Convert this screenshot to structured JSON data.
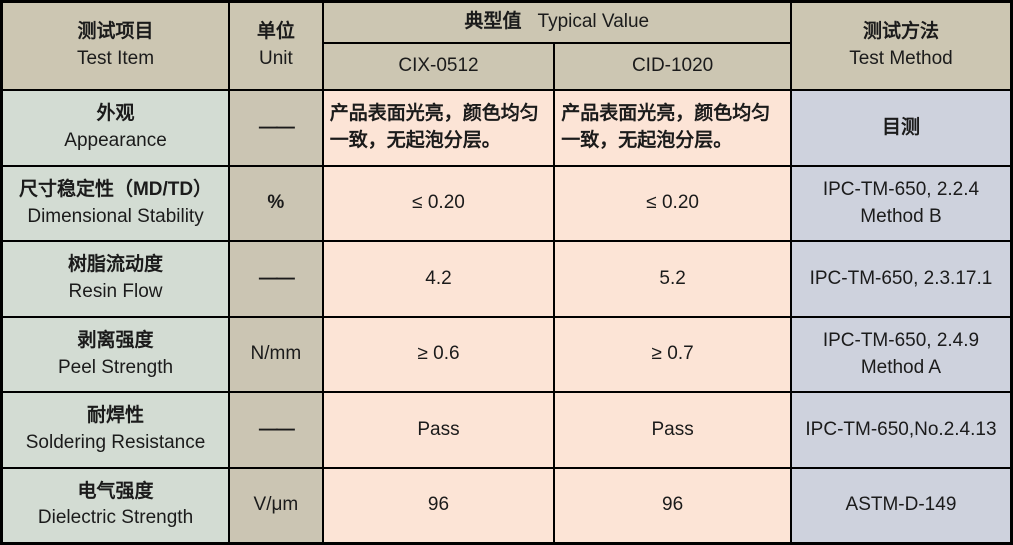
{
  "table": {
    "header": {
      "test_item": {
        "cn": "测试项目",
        "en": "Test Item"
      },
      "unit": {
        "cn": "单位",
        "en": "Unit"
      },
      "typical_value": {
        "cn": "典型值",
        "en": "Typical Value"
      },
      "columns": [
        "CIX-0512",
        "CID-1020"
      ],
      "test_method": {
        "cn": "测试方法",
        "en": "Test Method"
      }
    },
    "rows": [
      {
        "item_cn": "外观",
        "item_en": "Appearance",
        "unit": "——",
        "cix": "产品表面光亮，颜色均匀一致，无起泡分层。",
        "cid": "产品表面光亮，颜色均匀一致，无起泡分层。",
        "method": "目测"
      },
      {
        "item_cn": "尺寸稳定性（MD/TD）",
        "item_en": "Dimensional Stability",
        "unit": "%",
        "cix": "≤ 0.20",
        "cid": "≤ 0.20",
        "method": "IPC-TM-650, 2.2.4 Method B"
      },
      {
        "item_cn": "树脂流动度",
        "item_en": "Resin Flow",
        "unit": "——",
        "cix": "4.2",
        "cid": "5.2",
        "method": "IPC-TM-650, 2.3.17.1"
      },
      {
        "item_cn": "剥离强度",
        "item_en": "Peel Strength",
        "unit": "N/mm",
        "cix": "≥ 0.6",
        "cid": "≥ 0.7",
        "method": "IPC-TM-650, 2.4.9 Method A"
      },
      {
        "item_cn": "耐焊性",
        "item_en": "Soldering Resistance",
        "unit": "——",
        "cix": "Pass",
        "cid": "Pass",
        "method": "IPC-TM-650,No.2.4.13"
      },
      {
        "item_cn": "电气强度",
        "item_en": "Dielectric Strength",
        "unit": "V/μm",
        "cix": "96",
        "cid": "96",
        "method": "ASTM-D-149"
      }
    ],
    "colors": {
      "header_bg": "#ccc6b2",
      "item_column_bg": "#d3dcd3",
      "unit_column_bg": "#cbc5b3",
      "typical_value_bg": "#fce4d6",
      "test_method_bg": "#ced2dd",
      "grid_line": "#000000",
      "text": "#1b1b1b"
    }
  }
}
